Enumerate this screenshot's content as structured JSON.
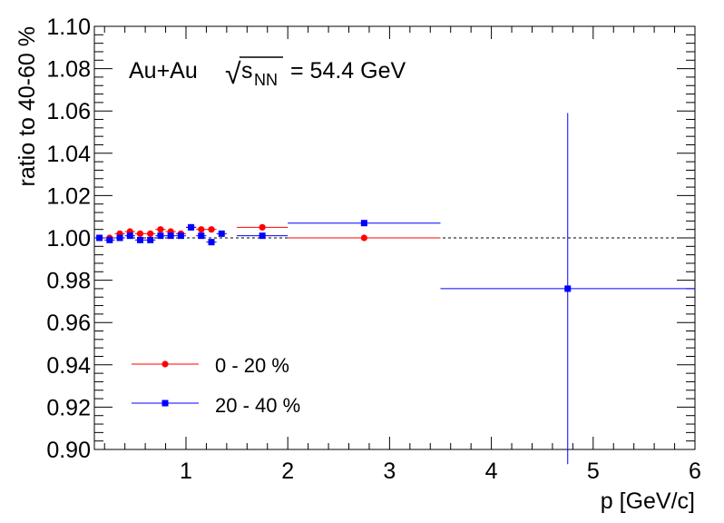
{
  "chart_data": {
    "type": "scatter",
    "annotation": {
      "prefix": "Au+Au",
      "sqrt_symbol": "√",
      "var": "s",
      "subscript": "NN",
      "suffix": "= 54.4 GeV"
    },
    "xlabel": "p [GeV/c]",
    "ylabel": "ratio to 40-60 %",
    "xlim": [
      0.1,
      6.0
    ],
    "ylim": [
      0.9,
      1.1
    ],
    "x_ticks": [
      1,
      2,
      3,
      4,
      5,
      6
    ],
    "x_tick_labels": [
      "1",
      "2",
      "3",
      "4",
      "5",
      "6"
    ],
    "y_ticks": [
      0.9,
      0.92,
      0.94,
      0.96,
      0.98,
      1.0,
      1.02,
      1.04,
      1.06,
      1.08,
      1.1
    ],
    "y_tick_labels": [
      "0.90",
      "0.92",
      "0.94",
      "0.96",
      "0.98",
      "1.00",
      "1.02",
      "1.04",
      "1.06",
      "1.08",
      "1.10"
    ],
    "reference_line": {
      "y": 1.0,
      "style": "dashed"
    },
    "grid": false,
    "legend_position": "bottom-left",
    "series": [
      {
        "name": "0 - 20 %",
        "color": "#ff0000",
        "marker": "circle",
        "points": [
          {
            "x": 0.15,
            "y": 1.0,
            "xerr": 0.05,
            "yerr": 0.0005
          },
          {
            "x": 0.25,
            "y": 1.0,
            "xerr": 0.05,
            "yerr": 0.0005
          },
          {
            "x": 0.35,
            "y": 1.002,
            "xerr": 0.05,
            "yerr": 0.0005
          },
          {
            "x": 0.45,
            "y": 1.003,
            "xerr": 0.05,
            "yerr": 0.0005
          },
          {
            "x": 0.55,
            "y": 1.002,
            "xerr": 0.05,
            "yerr": 0.0005
          },
          {
            "x": 0.65,
            "y": 1.002,
            "xerr": 0.05,
            "yerr": 0.0005
          },
          {
            "x": 0.75,
            "y": 1.004,
            "xerr": 0.05,
            "yerr": 0.0005
          },
          {
            "x": 0.85,
            "y": 1.003,
            "xerr": 0.05,
            "yerr": 0.0005
          },
          {
            "x": 0.95,
            "y": 1.002,
            "xerr": 0.05,
            "yerr": 0.0005
          },
          {
            "x": 1.05,
            "y": 1.005,
            "xerr": 0.05,
            "yerr": 0.0005
          },
          {
            "x": 1.15,
            "y": 1.004,
            "xerr": 0.05,
            "yerr": 0.0005
          },
          {
            "x": 1.25,
            "y": 1.004,
            "xerr": 0.05,
            "yerr": 0.0005
          },
          {
            "x": 1.75,
            "y": 1.005,
            "xerr": 0.25,
            "yerr": 0.0005
          },
          {
            "x": 2.75,
            "y": 1.0,
            "xerr": 0.75,
            "yerr": 0.0005
          }
        ]
      },
      {
        "name": "20 - 40 %",
        "color": "#0000ff",
        "marker": "square",
        "points": [
          {
            "x": 0.15,
            "y": 1.0,
            "xerr": 0.05,
            "yerr": 0.0005
          },
          {
            "x": 0.25,
            "y": 0.999,
            "xerr": 0.05,
            "yerr": 0.0005
          },
          {
            "x": 0.35,
            "y": 1.0,
            "xerr": 0.05,
            "yerr": 0.0005
          },
          {
            "x": 0.45,
            "y": 1.001,
            "xerr": 0.05,
            "yerr": 0.0005
          },
          {
            "x": 0.55,
            "y": 0.999,
            "xerr": 0.05,
            "yerr": 0.0005
          },
          {
            "x": 0.65,
            "y": 0.999,
            "xerr": 0.05,
            "yerr": 0.0005
          },
          {
            "x": 0.75,
            "y": 1.001,
            "xerr": 0.05,
            "yerr": 0.0005
          },
          {
            "x": 0.85,
            "y": 1.001,
            "xerr": 0.05,
            "yerr": 0.0005
          },
          {
            "x": 0.95,
            "y": 1.001,
            "xerr": 0.05,
            "yerr": 0.0005
          },
          {
            "x": 1.05,
            "y": 1.005,
            "xerr": 0.05,
            "yerr": 0.0005
          },
          {
            "x": 1.15,
            "y": 1.001,
            "xerr": 0.05,
            "yerr": 0.0005
          },
          {
            "x": 1.25,
            "y": 0.998,
            "xerr": 0.05,
            "yerr": 0.0005
          },
          {
            "x": 1.35,
            "y": 1.002,
            "xerr": 0.05,
            "yerr": 0.0005
          },
          {
            "x": 1.75,
            "y": 1.001,
            "xerr": 0.25,
            "yerr": 0.0005
          },
          {
            "x": 2.75,
            "y": 1.007,
            "xerr": 0.75,
            "yerr": 0.0005
          },
          {
            "x": 4.75,
            "y": 0.976,
            "xerr": 1.25,
            "yerr": 0.083
          }
        ]
      }
    ]
  }
}
